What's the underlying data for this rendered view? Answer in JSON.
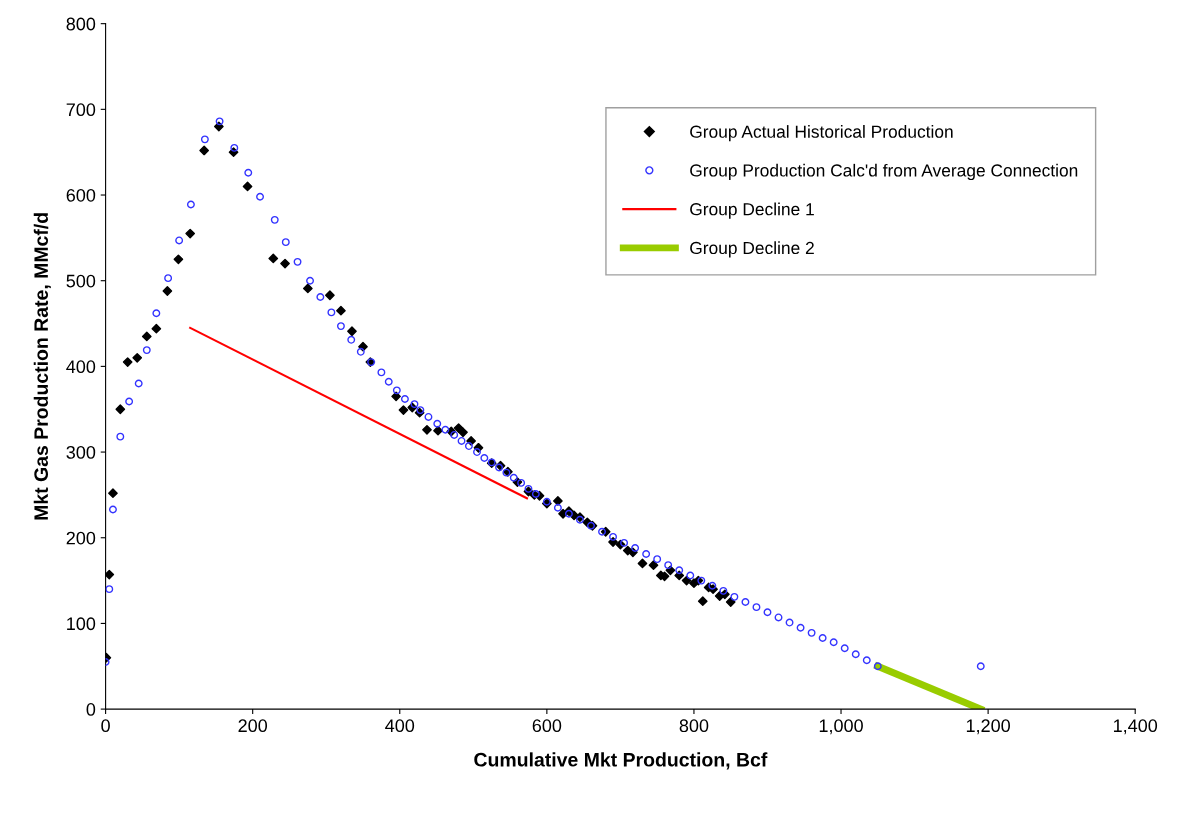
{
  "chart_data": {
    "type": "scatter",
    "xlabel": "Cumulative Mkt Production, Bcf",
    "ylabel": "Mkt Gas Production Rate, MMcf/d",
    "xlim": [
      0,
      1400
    ],
    "ylim": [
      0,
      800
    ],
    "xticks": [
      0,
      200,
      400,
      600,
      800,
      {
        "value": 1000,
        "label": "1,000"
      },
      {
        "value": 1200,
        "label": "1,200"
      },
      {
        "value": 1400,
        "label": "1,400"
      }
    ],
    "yticks": [
      0,
      100,
      200,
      300,
      400,
      500,
      600,
      700,
      800
    ],
    "grid": false,
    "legend": "top right",
    "series": [
      {
        "name": "Group Actual Historical Production",
        "marker": "diamond",
        "color": "#000000",
        "x": [
          1,
          5,
          10,
          20,
          30,
          43,
          56,
          69,
          84,
          99,
          115,
          134,
          154,
          174,
          193,
          228,
          244,
          275,
          305,
          320,
          335,
          350,
          360,
          395,
          405,
          417,
          427,
          437,
          452,
          470,
          480,
          486,
          497,
          507,
          525,
          537,
          547,
          560,
          575,
          583,
          590,
          600,
          615,
          622,
          630,
          637,
          645,
          655,
          662,
          680,
          690,
          700,
          710,
          717,
          730,
          745,
          755,
          760,
          768,
          780,
          790,
          800,
          806,
          812,
          820,
          826,
          835,
          842,
          850
        ],
        "values": [
          60,
          157,
          252,
          350,
          405,
          410,
          435,
          444,
          488,
          525,
          555,
          652,
          680,
          650,
          610,
          526,
          520,
          491,
          483,
          465,
          441,
          423,
          405,
          365,
          349,
          352,
          346,
          326,
          325,
          324,
          328,
          323,
          313,
          305,
          287,
          284,
          277,
          265,
          254,
          250,
          249,
          240,
          243,
          228,
          231,
          226,
          224,
          218,
          214,
          207,
          195,
          192,
          185,
          183,
          170,
          168,
          156,
          155,
          162,
          156,
          150,
          147,
          150,
          126,
          142,
          140,
          132,
          134,
          125
        ]
      },
      {
        "name": "Group Production Calc'd from Average Connection",
        "marker": "circle",
        "color": "#3333ff",
        "x": [
          0,
          5,
          10,
          20,
          32,
          45,
          56,
          69,
          85,
          100,
          116,
          135,
          155,
          175,
          194,
          210,
          230,
          245,
          261,
          278,
          292,
          307,
          320,
          334,
          347,
          361,
          375,
          385,
          396,
          407,
          420,
          428,
          439,
          451,
          462,
          474,
          484,
          494,
          505,
          515,
          525,
          535,
          545,
          555,
          565,
          575,
          585,
          600,
          615,
          630,
          645,
          660,
          675,
          690,
          705,
          720,
          735,
          750,
          765,
          780,
          795,
          810,
          825,
          840,
          855,
          870,
          885,
          900,
          915,
          930,
          945,
          960,
          975,
          990,
          1005,
          1020,
          1035,
          1050,
          1190
        ],
        "values": [
          55,
          140,
          233,
          318,
          359,
          380,
          419,
          462,
          503,
          547,
          589,
          665,
          686,
          655,
          626,
          598,
          571,
          545,
          522,
          500,
          481,
          463,
          447,
          431,
          417,
          405,
          393,
          382,
          372,
          362,
          356,
          349,
          341,
          333,
          326,
          320,
          313,
          307,
          300,
          293,
          288,
          282,
          276,
          270,
          264,
          257,
          251,
          242,
          235,
          228,
          221,
          214,
          207,
          201,
          194,
          188,
          181,
          175,
          168,
          162,
          156,
          150,
          144,
          138,
          131,
          125,
          119,
          113,
          107,
          101,
          95,
          89,
          83,
          78,
          71,
          64,
          57,
          50,
          50
        ]
      },
      {
        "name": "Group Decline 1",
        "type": "line",
        "color": "#ff0000",
        "x": [
          115,
          573
        ],
        "values": [
          445,
          246
        ]
      },
      {
        "name": "Group Decline 2",
        "type": "line",
        "color": "#99cc00",
        "x": [
          1050,
          1190
        ],
        "values": [
          50,
          0
        ]
      }
    ]
  }
}
